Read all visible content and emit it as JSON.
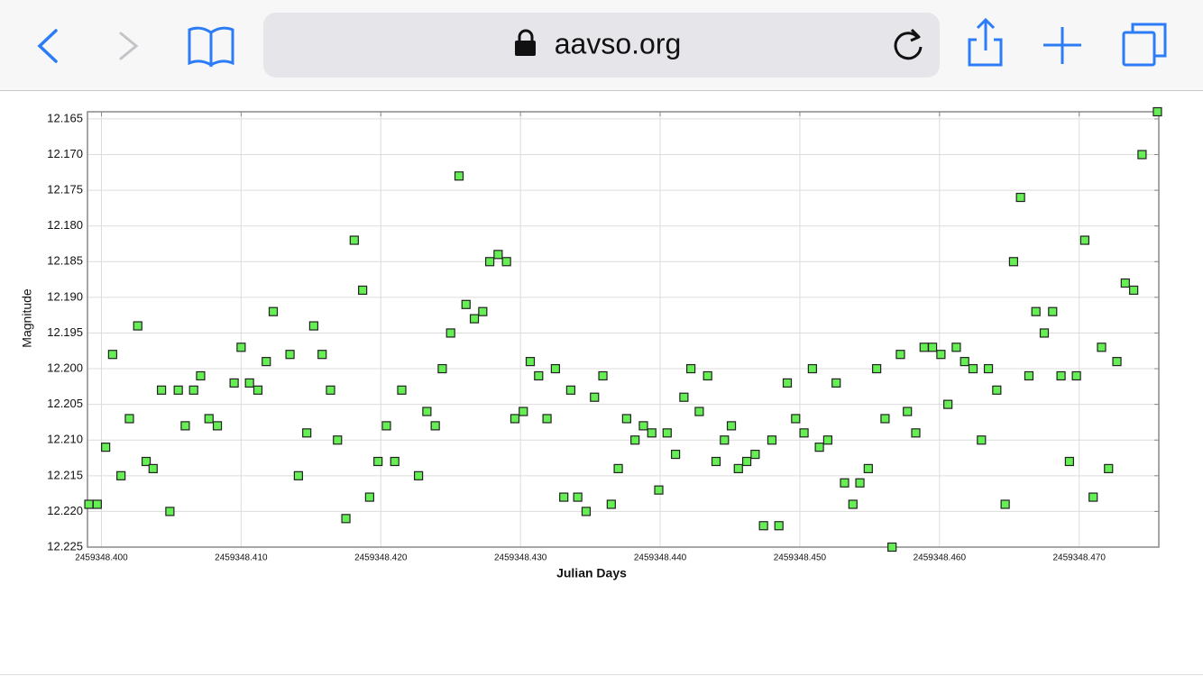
{
  "browser": {
    "url": "aavso.org"
  },
  "chart_data": {
    "type": "scatter",
    "x_label": "Julian Days",
    "y_label": "Magnitude",
    "color": "#66ee55",
    "edge_color": "#222222",
    "grid": true,
    "xlim": [
      2459348.399,
      2459348.4757
    ],
    "ylim": [
      12.225,
      12.164
    ],
    "xticks": [
      {
        "value": 2459348.4,
        "label": "2459348.400"
      },
      {
        "value": 2459348.41,
        "label": "2459348.410"
      },
      {
        "value": 2459348.42,
        "label": "2459348.420"
      },
      {
        "value": 2459348.43,
        "label": "2459348.430"
      },
      {
        "value": 2459348.44,
        "label": "2459348.440"
      },
      {
        "value": 2459348.45,
        "label": "2459348.450"
      },
      {
        "value": 2459348.46,
        "label": "2459348.460"
      },
      {
        "value": 2459348.47,
        "label": "2459348.470"
      }
    ],
    "yticks": [
      12.165,
      {
        "value": 12.17,
        "label": "12.170"
      },
      12.175,
      {
        "value": 12.18,
        "label": "12.180"
      },
      12.185,
      {
        "value": 12.19,
        "label": "12.190"
      },
      12.195,
      {
        "value": 12.2,
        "label": "12.200"
      },
      12.205,
      {
        "value": 12.21,
        "label": "12.210"
      },
      12.215,
      {
        "value": 12.22,
        "label": "12.220"
      },
      12.225
    ],
    "x": [
      2459348.3991,
      2459348.3997,
      2459348.4003,
      2459348.4008,
      2459348.4014,
      2459348.402,
      2459348.4026,
      2459348.4032,
      2459348.4037,
      2459348.4043,
      2459348.4049,
      2459348.4055,
      2459348.406,
      2459348.4066,
      2459348.4071,
      2459348.4077,
      2459348.4083,
      2459348.4095,
      2459348.41,
      2459348.4106,
      2459348.4112,
      2459348.4118,
      2459348.4123,
      2459348.4135,
      2459348.4141,
      2459348.4147,
      2459348.4152,
      2459348.4158,
      2459348.4164,
      2459348.4169,
      2459348.4175,
      2459348.4181,
      2459348.4187,
      2459348.4192,
      2459348.4198,
      2459348.4204,
      2459348.421,
      2459348.4215,
      2459348.4227,
      2459348.4233,
      2459348.4239,
      2459348.4244,
      2459348.425,
      2459348.4256,
      2459348.4261,
      2459348.4267,
      2459348.4273,
      2459348.4278,
      2459348.4284,
      2459348.429,
      2459348.4296,
      2459348.4302,
      2459348.4307,
      2459348.4313,
      2459348.4319,
      2459348.4325,
      2459348.4331,
      2459348.4336,
      2459348.4341,
      2459348.4347,
      2459348.4353,
      2459348.4359,
      2459348.4365,
      2459348.437,
      2459348.4376,
      2459348.4382,
      2459348.4388,
      2459348.4394,
      2459348.4399,
      2459348.4405,
      2459348.4411,
      2459348.4417,
      2459348.4422,
      2459348.4428,
      2459348.4434,
      2459348.444,
      2459348.4446,
      2459348.4451,
      2459348.4456,
      2459348.4462,
      2459348.4468,
      2459348.4474,
      2459348.448,
      2459348.4485,
      2459348.4491,
      2459348.4497,
      2459348.4503,
      2459348.4509,
      2459348.4514,
      2459348.452,
      2459348.4526,
      2459348.4532,
      2459348.4538,
      2459348.4543,
      2459348.4549,
      2459348.4555,
      2459348.4561,
      2459348.4566,
      2459348.4572,
      2459348.4577,
      2459348.4583,
      2459348.4589,
      2459348.4595,
      2459348.4601,
      2459348.4606,
      2459348.4612,
      2459348.4618,
      2459348.4624,
      2459348.463,
      2459348.4635,
      2459348.4641,
      2459348.4647,
      2459348.4653,
      2459348.4658,
      2459348.4664,
      2459348.4669,
      2459348.4675,
      2459348.4681,
      2459348.4687,
      2459348.4693,
      2459348.4698,
      2459348.4704,
      2459348.471,
      2459348.4716,
      2459348.4721,
      2459348.4727,
      2459348.4733,
      2459348.4739,
      2459348.4745,
      2459348.4756
    ],
    "values": [
      12.219,
      12.219,
      12.211,
      12.198,
      12.215,
      12.207,
      12.194,
      12.213,
      12.214,
      12.203,
      12.22,
      12.203,
      12.208,
      12.203,
      12.201,
      12.207,
      12.208,
      12.202,
      12.197,
      12.202,
      12.203,
      12.199,
      12.192,
      12.198,
      12.215,
      12.209,
      12.194,
      12.198,
      12.203,
      12.21,
      12.221,
      12.182,
      12.189,
      12.218,
      12.213,
      12.208,
      12.213,
      12.203,
      12.215,
      12.206,
      12.208,
      12.2,
      12.195,
      12.173,
      12.191,
      12.193,
      12.192,
      12.185,
      12.184,
      12.185,
      12.207,
      12.206,
      12.199,
      12.201,
      12.207,
      12.2,
      12.218,
      12.203,
      12.218,
      12.22,
      12.204,
      12.201,
      12.219,
      12.214,
      12.207,
      12.21,
      12.208,
      12.209,
      12.217,
      12.209,
      12.212,
      12.204,
      12.2,
      12.206,
      12.201,
      12.213,
      12.21,
      12.208,
      12.214,
      12.213,
      12.212,
      12.222,
      12.21,
      12.222,
      12.202,
      12.207,
      12.209,
      12.2,
      12.211,
      12.21,
      12.202,
      12.216,
      12.219,
      12.216,
      12.214,
      12.2,
      12.207,
      12.225,
      12.198,
      12.206,
      12.209,
      12.197,
      12.197,
      12.198,
      12.205,
      12.197,
      12.199,
      12.2,
      12.21,
      12.2,
      12.203,
      12.219,
      12.185,
      12.176,
      12.201,
      12.192,
      12.195,
      12.192,
      12.201,
      12.213,
      12.201,
      12.182,
      12.218,
      12.197,
      12.214,
      12.199,
      12.188,
      12.189,
      12.17,
      12.164
    ]
  }
}
